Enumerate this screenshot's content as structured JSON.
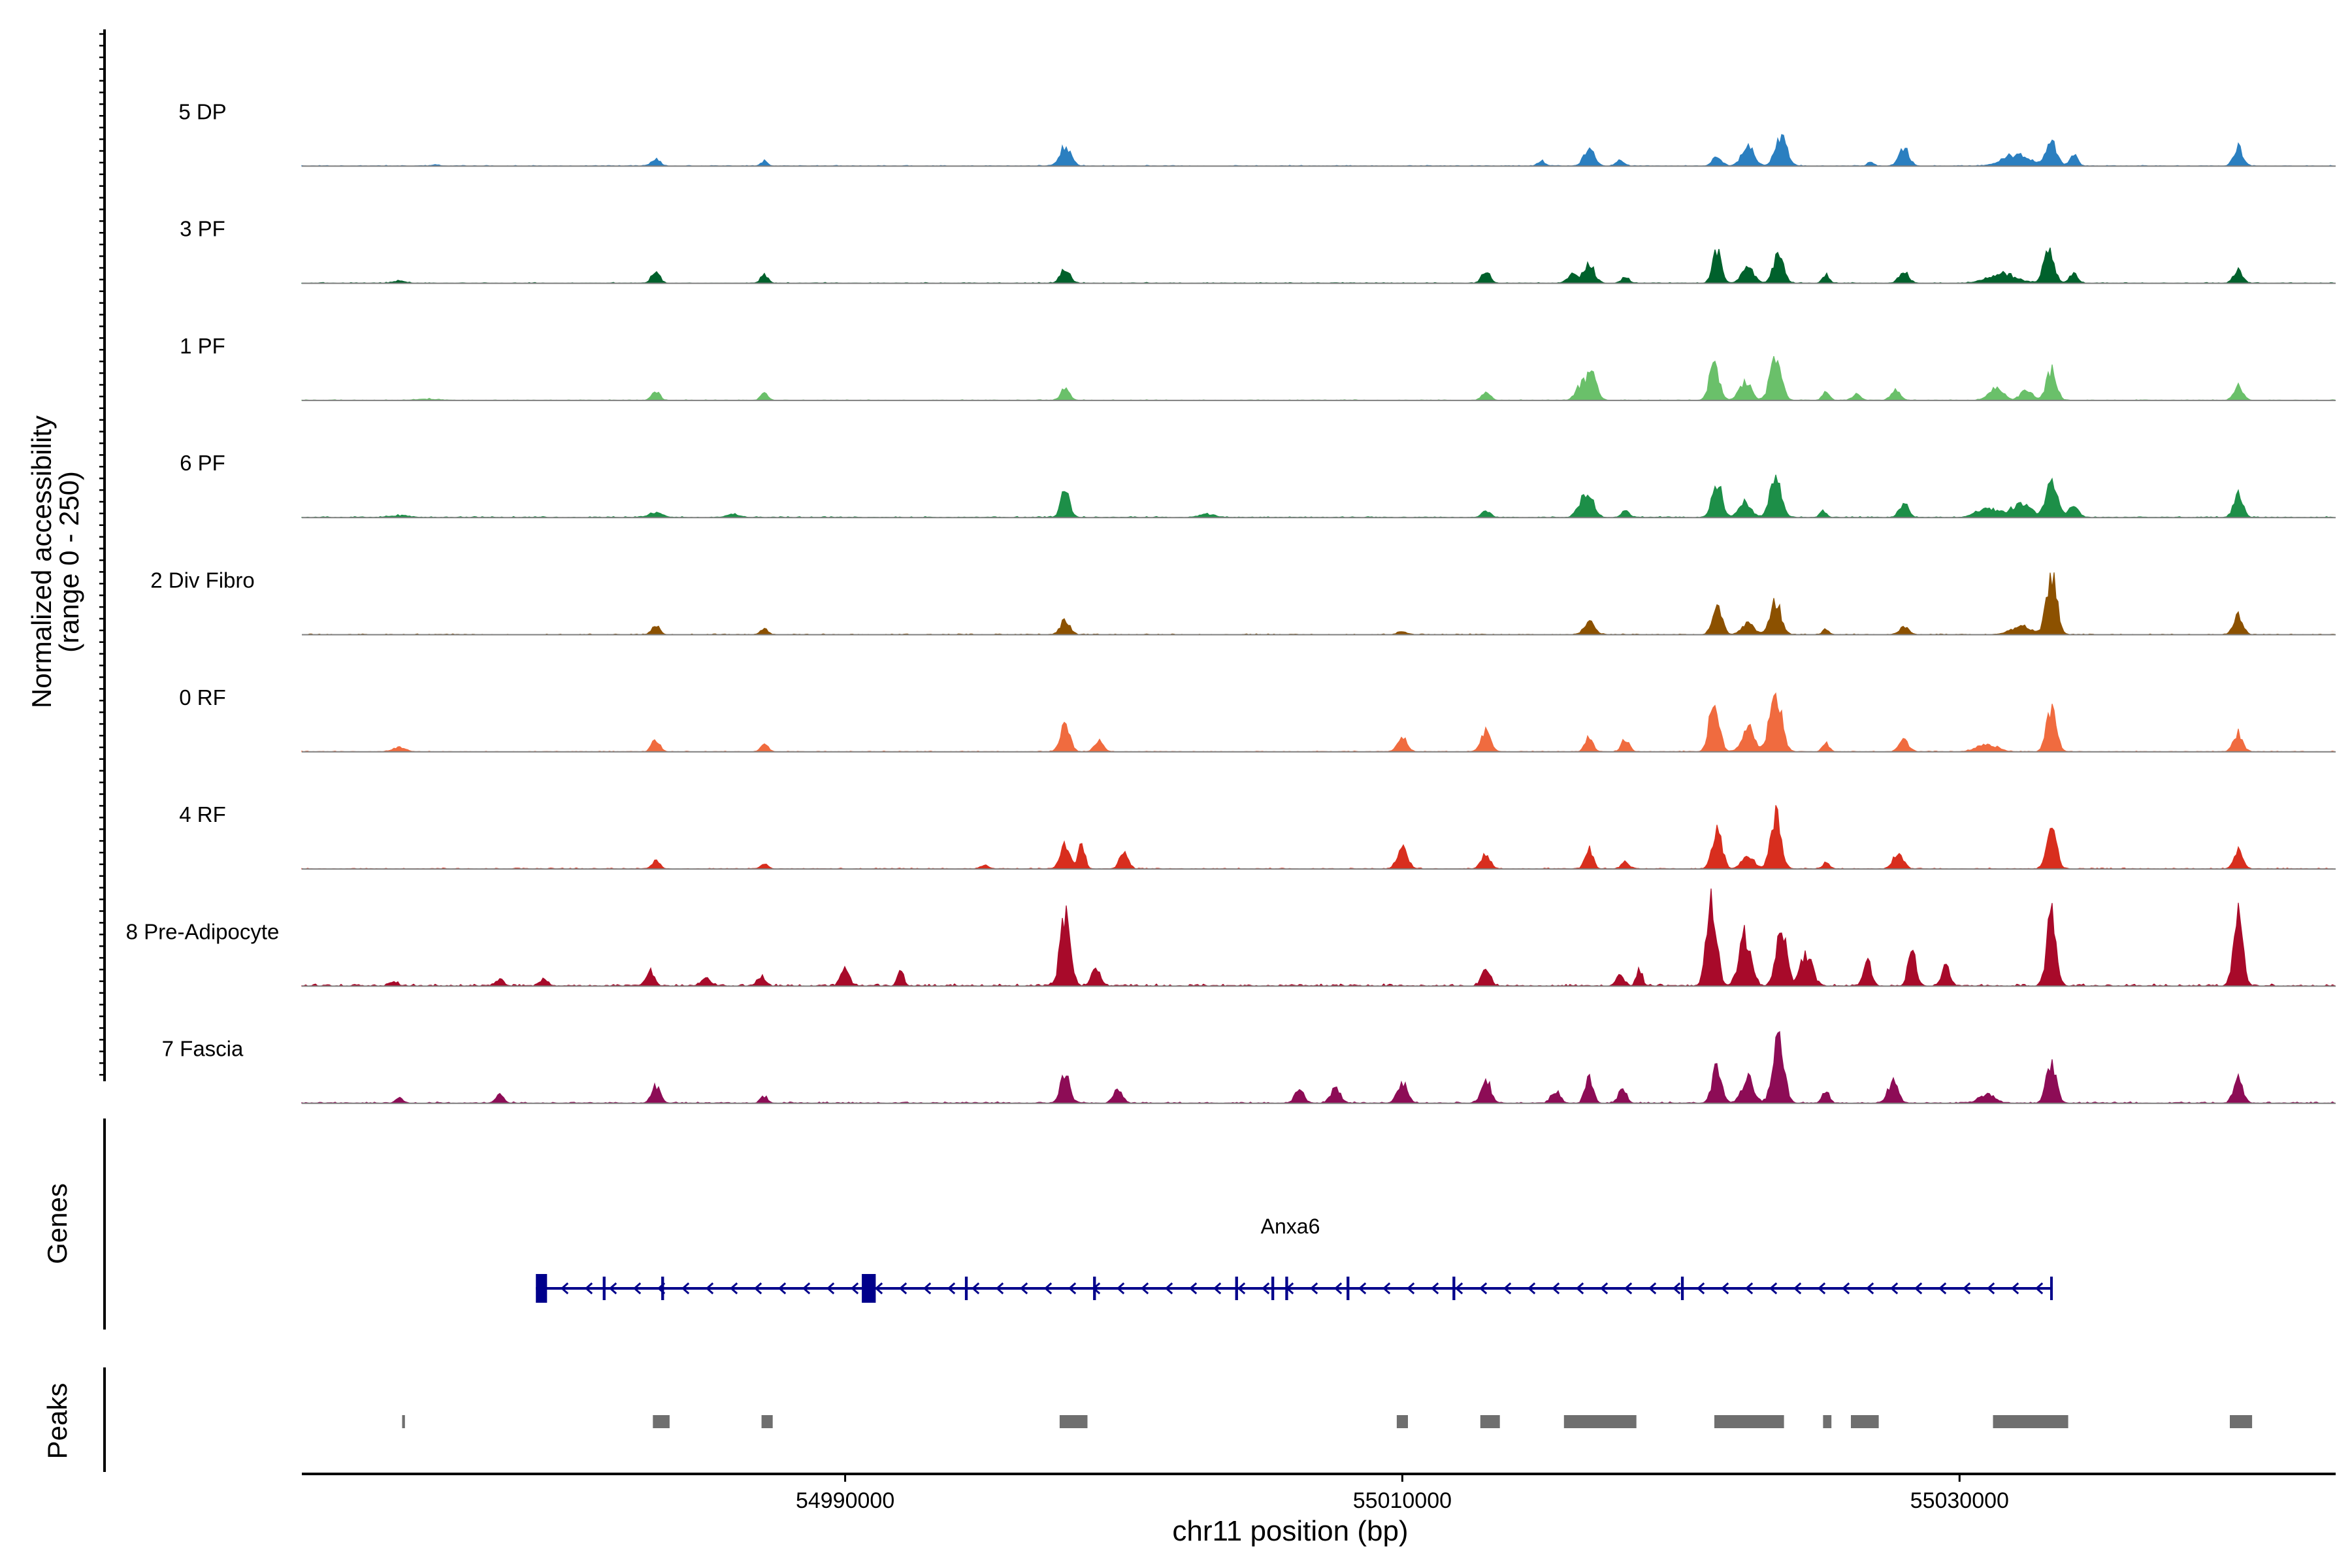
{
  "chart_data": {
    "type": "area",
    "title": "",
    "ylabel": "Normalized accessibility",
    "ylabel_range": "(range 0 - 250)",
    "xlabel": "chr11 position (bp)",
    "xlim": [
      54970500,
      55043500
    ],
    "ylim": [
      0,
      250
    ],
    "x_ticks": [
      54990000,
      55010000,
      55030000
    ],
    "x_tick_labels": [
      "54990000",
      "55010000",
      "55030000"
    ],
    "series": [
      {
        "name": "5 DP",
        "color": "#2b7fc0",
        "peaks": [
          [
            54975300,
            2,
            200
          ],
          [
            54983200,
            12,
            220
          ],
          [
            54987100,
            8,
            150
          ],
          [
            54997900,
            30,
            280
          ],
          [
            55015000,
            8,
            200
          ],
          [
            55016700,
            28,
            260
          ],
          [
            55017800,
            9,
            200
          ],
          [
            55021300,
            14,
            240
          ],
          [
            55022400,
            32,
            300
          ],
          [
            55023600,
            45,
            300
          ],
          [
            55026800,
            7,
            150
          ],
          [
            55028000,
            28,
            260
          ],
          [
            55032000,
            18,
            700
          ],
          [
            55033300,
            40,
            260
          ],
          [
            55034100,
            18,
            200
          ],
          [
            55040000,
            30,
            230
          ]
        ],
        "noise": 1.5
      },
      {
        "name": "3 PF",
        "color": "#00612c",
        "peaks": [
          [
            54974000,
            4,
            300
          ],
          [
            54983200,
            20,
            200
          ],
          [
            54987100,
            14,
            180
          ],
          [
            54997900,
            22,
            240
          ],
          [
            55013000,
            18,
            220
          ],
          [
            55016100,
            14,
            250
          ],
          [
            55016700,
            32,
            260
          ],
          [
            55018000,
            9,
            200
          ],
          [
            55021300,
            55,
            220
          ],
          [
            55022400,
            25,
            300
          ],
          [
            55023500,
            46,
            260
          ],
          [
            55025200,
            14,
            170
          ],
          [
            55028000,
            18,
            240
          ],
          [
            55031500,
            16,
            700
          ],
          [
            55033200,
            55,
            260
          ],
          [
            55034100,
            16,
            200
          ],
          [
            55040000,
            20,
            230
          ]
        ],
        "noise": 1.5
      },
      {
        "name": "1 PF",
        "color": "#6ac06a",
        "peaks": [
          [
            54975000,
            2,
            600
          ],
          [
            54983200,
            16,
            200
          ],
          [
            54987100,
            12,
            180
          ],
          [
            54997900,
            18,
            220
          ],
          [
            55013000,
            14,
            220
          ],
          [
            55016400,
            22,
            260
          ],
          [
            55016800,
            40,
            260
          ],
          [
            55021200,
            60,
            240
          ],
          [
            55022300,
            30,
            300
          ],
          [
            55023400,
            68,
            280
          ],
          [
            55025200,
            14,
            170
          ],
          [
            55026300,
            10,
            200
          ],
          [
            55027700,
            16,
            230
          ],
          [
            55031300,
            22,
            350
          ],
          [
            55032400,
            16,
            300
          ],
          [
            55033300,
            50,
            240
          ],
          [
            55040000,
            22,
            230
          ]
        ],
        "noise": 1.2
      },
      {
        "name": "6 PF",
        "color": "#1d8f48",
        "peaks": [
          [
            54974000,
            3,
            500
          ],
          [
            54983200,
            7,
            350
          ],
          [
            54986000,
            5,
            300
          ],
          [
            54997900,
            42,
            220
          ],
          [
            55003000,
            5,
            400
          ],
          [
            55013000,
            10,
            220
          ],
          [
            55016400,
            18,
            250
          ],
          [
            55016700,
            34,
            260
          ],
          [
            55018000,
            10,
            200
          ],
          [
            55021300,
            56,
            240
          ],
          [
            55022300,
            24,
            300
          ],
          [
            55023400,
            64,
            280
          ],
          [
            55025100,
            10,
            170
          ],
          [
            55028000,
            22,
            230
          ],
          [
            55031000,
            16,
            500
          ],
          [
            55032200,
            22,
            500
          ],
          [
            55033300,
            64,
            280
          ],
          [
            55034100,
            18,
            250
          ],
          [
            55040000,
            36,
            230
          ]
        ],
        "noise": 2
      },
      {
        "name": "2 Div Fibro",
        "color": "#8c5100",
        "peaks": [
          [
            54983200,
            14,
            200
          ],
          [
            54987100,
            10,
            180
          ],
          [
            54997900,
            24,
            230
          ],
          [
            55010000,
            6,
            200
          ],
          [
            55016700,
            20,
            260
          ],
          [
            55021300,
            46,
            240
          ],
          [
            55022400,
            18,
            300
          ],
          [
            55023400,
            52,
            280
          ],
          [
            55025200,
            8,
            170
          ],
          [
            55028000,
            12,
            240
          ],
          [
            55032200,
            14,
            500
          ],
          [
            55033300,
            96,
            260
          ],
          [
            55040000,
            30,
            230
          ]
        ],
        "noise": 1.5
      },
      {
        "name": "0 RF",
        "color": "#f06b3f",
        "peaks": [
          [
            54974000,
            8,
            300
          ],
          [
            54983200,
            20,
            200
          ],
          [
            54987100,
            14,
            180
          ],
          [
            54997900,
            42,
            240
          ],
          [
            54999100,
            18,
            220
          ],
          [
            55010000,
            22,
            240
          ],
          [
            55013000,
            32,
            260
          ],
          [
            55016700,
            22,
            200
          ],
          [
            55018000,
            20,
            200
          ],
          [
            55021200,
            86,
            240
          ],
          [
            55022400,
            40,
            300
          ],
          [
            55023400,
            96,
            300
          ],
          [
            55025200,
            14,
            170
          ],
          [
            55028000,
            18,
            240
          ],
          [
            55031000,
            12,
            500
          ],
          [
            55033300,
            72,
            240
          ],
          [
            55040000,
            30,
            230
          ]
        ],
        "noise": 1.5
      },
      {
        "name": "4 RF",
        "color": "#d82e1e",
        "peaks": [
          [
            54983200,
            14,
            200
          ],
          [
            54987100,
            8,
            180
          ],
          [
            54995000,
            6,
            200
          ],
          [
            54997900,
            36,
            240
          ],
          [
            54998500,
            40,
            160
          ],
          [
            55000000,
            24,
            220
          ],
          [
            55010000,
            38,
            250
          ],
          [
            55013000,
            24,
            230
          ],
          [
            55016700,
            32,
            200
          ],
          [
            55018000,
            12,
            200
          ],
          [
            55021300,
            66,
            240
          ],
          [
            55022400,
            20,
            300
          ],
          [
            55023400,
            86,
            260
          ],
          [
            55025200,
            10,
            170
          ],
          [
            55027800,
            28,
            250
          ],
          [
            55033300,
            74,
            240
          ],
          [
            55040000,
            28,
            230
          ]
        ],
        "noise": 1.8
      },
      {
        "name": "8 Pre-Adipocyte",
        "color": "#a80a2a",
        "peaks": [
          [
            54973800,
            8,
            200
          ],
          [
            54977600,
            12,
            200
          ],
          [
            54979200,
            10,
            200
          ],
          [
            54983000,
            26,
            200
          ],
          [
            54985000,
            12,
            250
          ],
          [
            54987000,
            16,
            200
          ],
          [
            54990000,
            30,
            200
          ],
          [
            54992000,
            26,
            150
          ],
          [
            54997900,
            110,
            250
          ],
          [
            54999000,
            30,
            200
          ],
          [
            55013000,
            30,
            200
          ],
          [
            55017800,
            16,
            200
          ],
          [
            55018500,
            28,
            150
          ],
          [
            55021100,
            148,
            250
          ],
          [
            55022300,
            80,
            300
          ],
          [
            55023600,
            90,
            260
          ],
          [
            55024500,
            50,
            300
          ],
          [
            55026700,
            38,
            200
          ],
          [
            55028300,
            60,
            200
          ],
          [
            55029500,
            34,
            200
          ],
          [
            55033300,
            112,
            240
          ],
          [
            55040000,
            110,
            230
          ]
        ],
        "noise": 4
      },
      {
        "name": "7 Fascia",
        "color": "#8d0c56",
        "peaks": [
          [
            54974000,
            8,
            200
          ],
          [
            54977600,
            14,
            200
          ],
          [
            54983200,
            28,
            220
          ],
          [
            54987100,
            10,
            180
          ],
          [
            54997900,
            44,
            240
          ],
          [
            54999800,
            22,
            220
          ],
          [
            55006300,
            22,
            220
          ],
          [
            55007600,
            24,
            240
          ],
          [
            55010000,
            34,
            250
          ],
          [
            55013000,
            40,
            240
          ],
          [
            55015500,
            20,
            220
          ],
          [
            55016700,
            38,
            200
          ],
          [
            55017900,
            24,
            200
          ],
          [
            55021300,
            58,
            240
          ],
          [
            55022400,
            40,
            300
          ],
          [
            55023500,
            108,
            280
          ],
          [
            55025200,
            22,
            170
          ],
          [
            55027600,
            34,
            250
          ],
          [
            55031000,
            14,
            400
          ],
          [
            55033300,
            70,
            240
          ],
          [
            55040000,
            38,
            230
          ]
        ],
        "noise": 2.5
      }
    ],
    "tracks": {
      "genes": "Genes",
      "peaks": "Peaks"
    },
    "gene": {
      "name": "Anxa6",
      "start": 54978900,
      "end": 55033300,
      "strand": "-",
      "exons": [
        [
          54978900,
          54979300,
          1
        ],
        [
          54981300,
          54981400,
          0
        ],
        [
          54983400,
          54983500,
          0
        ],
        [
          54990600,
          54991100,
          1
        ],
        [
          54994300,
          54994400,
          0
        ],
        [
          54998900,
          54999000,
          0
        ],
        [
          55004000,
          55004100,
          0
        ],
        [
          55005300,
          55005400,
          0
        ],
        [
          55005800,
          55005900,
          0
        ],
        [
          55008000,
          55008100,
          0
        ],
        [
          55011800,
          55011900,
          0
        ],
        [
          55020000,
          55020100,
          0
        ]
      ]
    },
    "peaks_track": [
      [
        54974100,
        54974200
      ],
      [
        54983100,
        54983700
      ],
      [
        54987000,
        54987400
      ],
      [
        54997700,
        54998700
      ],
      [
        55009800,
        55010200
      ],
      [
        55012800,
        55013500
      ],
      [
        55015800,
        55018400
      ],
      [
        55021200,
        55023700
      ],
      [
        55025100,
        55025400
      ],
      [
        55026100,
        55027100
      ],
      [
        55031200,
        55033900
      ],
      [
        55039700,
        55040500
      ]
    ]
  }
}
